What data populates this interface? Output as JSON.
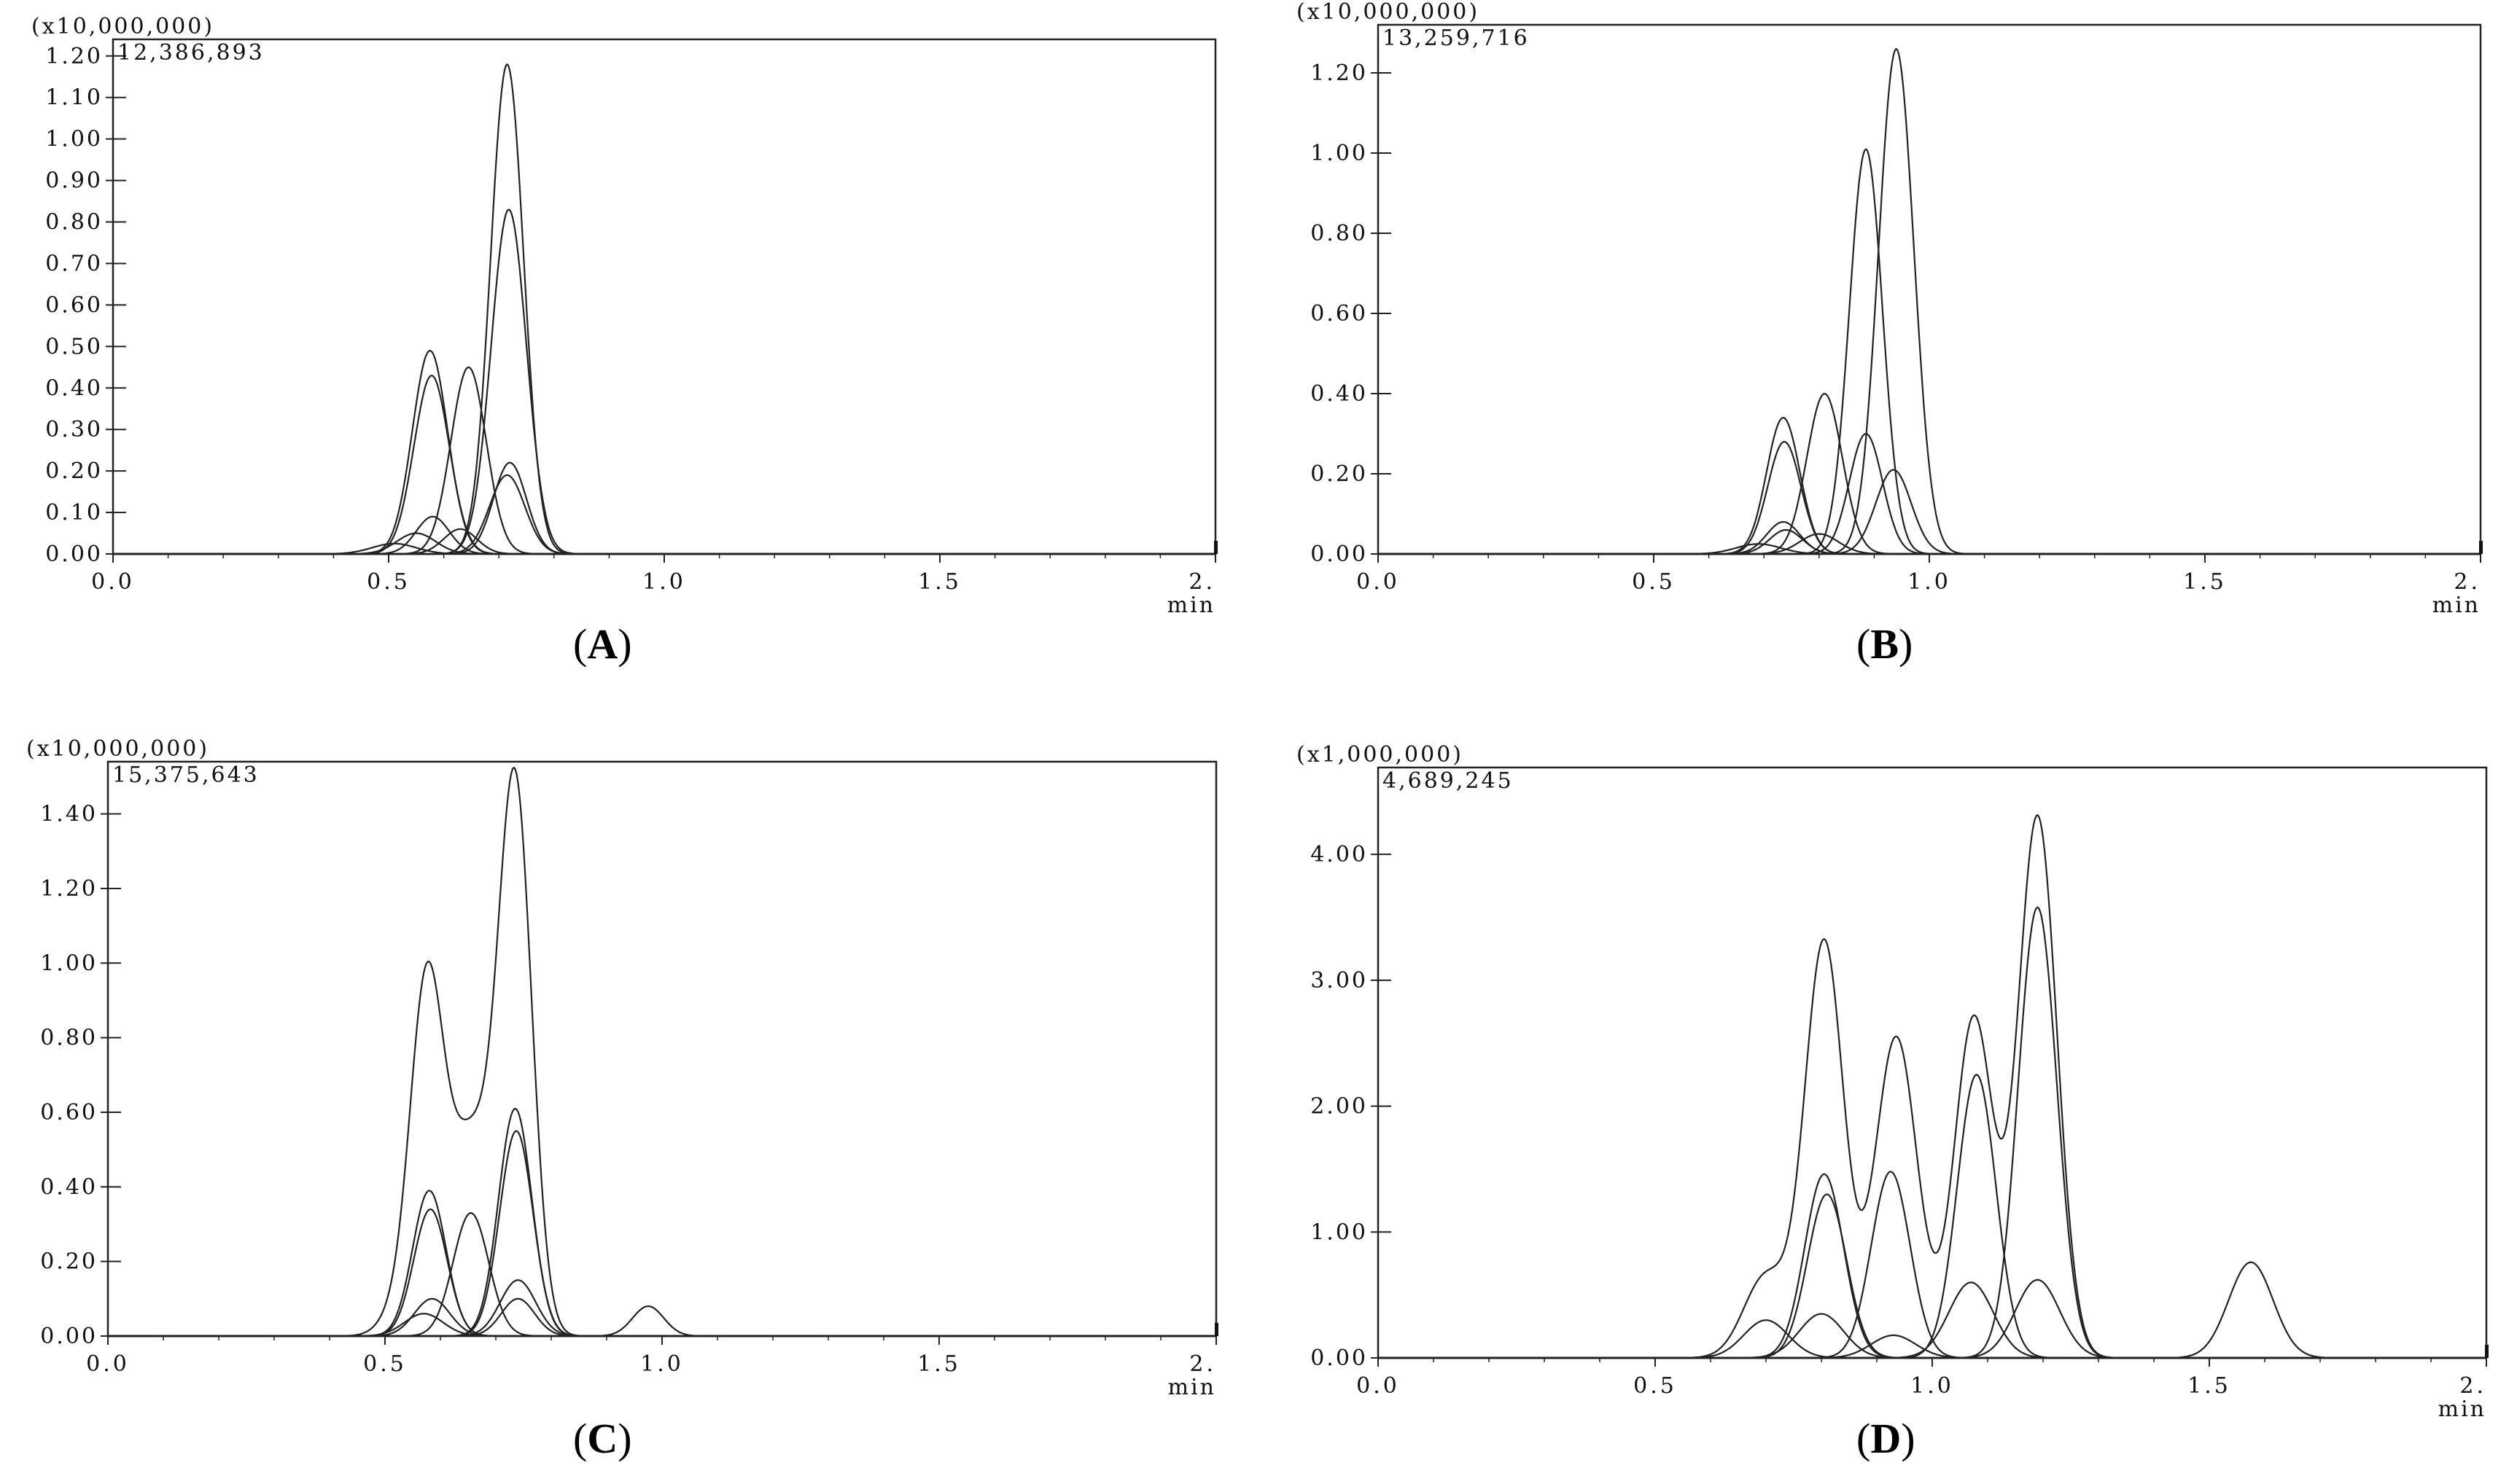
{
  "chart_data": [
    {
      "type": "line",
      "panel_label": "A",
      "scale_label": "(x10,000,000)",
      "max_intensity_label": "12,386,893",
      "x_unit_label": "min",
      "x_ticks": [
        "0.0",
        "0.5",
        "1.0",
        "1.5",
        "2."
      ],
      "x_tick_values": [
        0.0,
        0.5,
        1.0,
        1.5,
        2.0
      ],
      "y_ticks": [
        "0.00",
        "0.10",
        "0.20",
        "0.30",
        "0.40",
        "0.50",
        "0.60",
        "0.70",
        "0.80",
        "0.90",
        "1.00",
        "1.10",
        "1.20"
      ],
      "y_tick_values": [
        0.0,
        0.1,
        0.2,
        0.3,
        0.4,
        0.5,
        0.6,
        0.7,
        0.8,
        0.9,
        1.0,
        1.1,
        1.2
      ],
      "xlim": [
        0,
        2.0
      ],
      "ylim": [
        0,
        1.24
      ],
      "series": [
        {
          "peaks": [
            [
              0.575,
              0.49,
              0.032
            ]
          ]
        },
        {
          "peaks": [
            [
              0.578,
              0.43,
              0.032
            ]
          ]
        },
        {
          "peaks": [
            [
              0.645,
              0.45,
              0.032
            ]
          ]
        },
        {
          "peaks": [
            [
              0.715,
              1.18,
              0.03
            ]
          ]
        },
        {
          "peaks": [
            [
              0.718,
              0.83,
              0.032
            ]
          ]
        },
        {
          "peaks": [
            [
              0.72,
              0.22,
              0.03
            ]
          ]
        },
        {
          "peaks": [
            [
              0.715,
              0.19,
              0.032
            ]
          ]
        },
        {
          "peaks": [
            [
              0.58,
              0.09,
              0.03
            ]
          ]
        },
        {
          "peaks": [
            [
              0.55,
              0.05,
              0.035
            ]
          ]
        },
        {
          "peaks": [
            [
              0.51,
              0.025,
              0.04
            ]
          ]
        },
        {
          "peaks": [
            [
              0.63,
              0.06,
              0.03
            ]
          ]
        }
      ]
    },
    {
      "type": "line",
      "panel_label": "B",
      "scale_label": "(x10,000,000)",
      "max_intensity_label": "13,259,716",
      "x_unit_label": "min",
      "x_ticks": [
        "0.0",
        "0.5",
        "1.0",
        "1.5",
        "2."
      ],
      "x_tick_values": [
        0.0,
        0.5,
        1.0,
        1.5,
        2.0
      ],
      "y_ticks": [
        "0.00",
        "0.20",
        "0.40",
        "0.60",
        "0.80",
        "1.00",
        "1.20"
      ],
      "y_tick_values": [
        0.0,
        0.2,
        0.4,
        0.6,
        0.8,
        1.0,
        1.2
      ],
      "xlim": [
        0,
        2.0
      ],
      "ylim": [
        0,
        1.32
      ],
      "series": [
        {
          "peaks": [
            [
              0.735,
              0.34,
              0.03
            ]
          ]
        },
        {
          "peaks": [
            [
              0.737,
              0.28,
              0.03
            ]
          ]
        },
        {
          "peaks": [
            [
              0.81,
              0.4,
              0.032
            ]
          ]
        },
        {
          "peaks": [
            [
              0.885,
              1.01,
              0.03
            ]
          ]
        },
        {
          "peaks": [
            [
              0.94,
              1.26,
              0.032
            ]
          ]
        },
        {
          "peaks": [
            [
              0.885,
              0.3,
              0.03
            ]
          ]
        },
        {
          "peaks": [
            [
              0.935,
              0.21,
              0.032
            ]
          ]
        },
        {
          "peaks": [
            [
              0.735,
              0.08,
              0.03
            ]
          ]
        },
        {
          "peaks": [
            [
              0.8,
              0.05,
              0.035
            ]
          ]
        },
        {
          "peaks": [
            [
              0.69,
              0.025,
              0.04
            ]
          ]
        },
        {
          "peaks": [
            [
              0.74,
              0.06,
              0.03
            ]
          ]
        }
      ]
    },
    {
      "type": "line",
      "panel_label": "C",
      "scale_label": "(x10,000,000)",
      "max_intensity_label": "15,375,643",
      "x_unit_label": "min",
      "x_ticks": [
        "0.0",
        "0.5",
        "1.0",
        "1.5",
        "2."
      ],
      "x_tick_values": [
        0.0,
        0.5,
        1.0,
        1.5,
        2.0
      ],
      "y_ticks": [
        "0.00",
        "0.20",
        "0.40",
        "0.60",
        "0.80",
        "1.00",
        "1.20",
        "1.40"
      ],
      "y_tick_values": [
        0.0,
        0.2,
        0.4,
        0.6,
        0.8,
        1.0,
        1.2,
        1.4
      ],
      "xlim": [
        0,
        2.0
      ],
      "ylim": [
        0,
        1.54
      ],
      "series": [
        {
          "peaks": [
            [
              0.575,
              0.92,
              0.03
            ],
            [
              0.655,
              0.52,
              0.04
            ],
            [
              0.735,
              1.45,
              0.03
            ],
            [
              0.52,
              0.05,
              0.03
            ]
          ]
        },
        {
          "peaks": [
            [
              0.58,
              0.39,
              0.03
            ]
          ]
        },
        {
          "peaks": [
            [
              0.582,
              0.34,
              0.03
            ]
          ]
        },
        {
          "peaks": [
            [
              0.655,
              0.33,
              0.032
            ]
          ]
        },
        {
          "peaks": [
            [
              0.735,
              0.61,
              0.03
            ]
          ]
        },
        {
          "peaks": [
            [
              0.737,
              0.55,
              0.03
            ]
          ]
        },
        {
          "peaks": [
            [
              0.74,
              0.15,
              0.032
            ]
          ]
        },
        {
          "peaks": [
            [
              0.74,
              0.1,
              0.03
            ]
          ]
        },
        {
          "peaks": [
            [
              0.585,
              0.1,
              0.032
            ]
          ]
        },
        {
          "peaks": [
            [
              0.57,
              0.06,
              0.035
            ]
          ]
        },
        {
          "peaks": [
            [
              0.975,
              0.08,
              0.028
            ]
          ]
        }
      ]
    },
    {
      "type": "line",
      "panel_label": "D",
      "scale_label": "(x1,000,000)",
      "max_intensity_label": "4,689,245",
      "x_unit_label": "min",
      "x_ticks": [
        "0.0",
        "0.5",
        "1.0",
        "1.5",
        "2."
      ],
      "x_tick_values": [
        0.0,
        0.5,
        1.0,
        1.5,
        2.0
      ],
      "y_ticks": [
        "0.00",
        "1.00",
        "2.00",
        "3.00",
        "4.00"
      ],
      "y_tick_values": [
        0.0,
        1.0,
        2.0,
        3.0,
        4.0
      ],
      "xlim": [
        0,
        2.0
      ],
      "ylim": [
        0,
        4.69
      ],
      "series": [
        {
          "peaks": [
            [
              0.7,
              0.65,
              0.04
            ],
            [
              0.805,
              3.3,
              0.035
            ],
            [
              0.935,
              2.55,
              0.038
            ],
            [
              1.075,
              2.7,
              0.035
            ],
            [
              1.19,
              4.3,
              0.035
            ]
          ]
        },
        {
          "peaks": [
            [
              1.19,
              3.58,
              0.035
            ]
          ]
        },
        {
          "peaks": [
            [
              1.08,
              2.25,
              0.035
            ]
          ]
        },
        {
          "peaks": [
            [
              0.805,
              1.46,
              0.035
            ]
          ]
        },
        {
          "peaks": [
            [
              0.81,
              1.3,
              0.035
            ]
          ]
        },
        {
          "peaks": [
            [
              0.925,
              1.48,
              0.035
            ]
          ]
        },
        {
          "peaks": [
            [
              1.07,
              0.6,
              0.04
            ]
          ]
        },
        {
          "peaks": [
            [
              1.19,
              0.62,
              0.04
            ]
          ]
        },
        {
          "peaks": [
            [
              1.575,
              0.76,
              0.04
            ]
          ]
        },
        {
          "peaks": [
            [
              0.7,
              0.3,
              0.04
            ]
          ]
        },
        {
          "peaks": [
            [
              0.8,
              0.35,
              0.04
            ]
          ]
        },
        {
          "peaks": [
            [
              0.93,
              0.18,
              0.04
            ]
          ]
        }
      ]
    }
  ],
  "captions": {
    "a": {
      "open": "(",
      "letter": "A",
      "close": ")"
    },
    "b": {
      "open": "(",
      "letter": "B",
      "close": ")"
    },
    "c": {
      "open": "(",
      "letter": "C",
      "close": ")"
    },
    "d": {
      "open": "(",
      "letter": "D",
      "close": ")"
    }
  }
}
